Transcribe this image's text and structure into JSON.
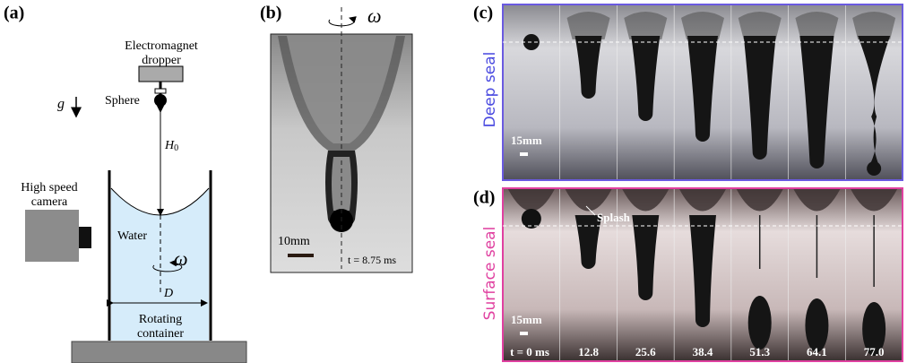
{
  "panel_a": {
    "label": "(a)",
    "dropper_label": [
      "Electromagnet",
      "dropper"
    ],
    "gravity": "g",
    "sphere": "Sphere",
    "height": {
      "symbol": "H",
      "subscript": "0"
    },
    "camera_label": [
      "High speed",
      "camera"
    ],
    "water": "Water",
    "rotation": "ω",
    "diameter": "D",
    "container_label": [
      "Rotating",
      "container"
    ]
  },
  "panel_b": {
    "label": "(b)",
    "rotation": "ω",
    "scale_bar": "10mm",
    "time": "t = 8.75 ms"
  },
  "panel_c": {
    "label": "(c)",
    "side_label": "Deep seal",
    "scale_bar": "15mm"
  },
  "panel_d": {
    "label": "(d)",
    "side_label": "Surface seal",
    "annotation": "Splash",
    "scale_bar": "15mm",
    "times": [
      "t = 0 ms",
      "12.8",
      "25.6",
      "38.4",
      "51.3",
      "64.1",
      "77.0"
    ]
  }
}
